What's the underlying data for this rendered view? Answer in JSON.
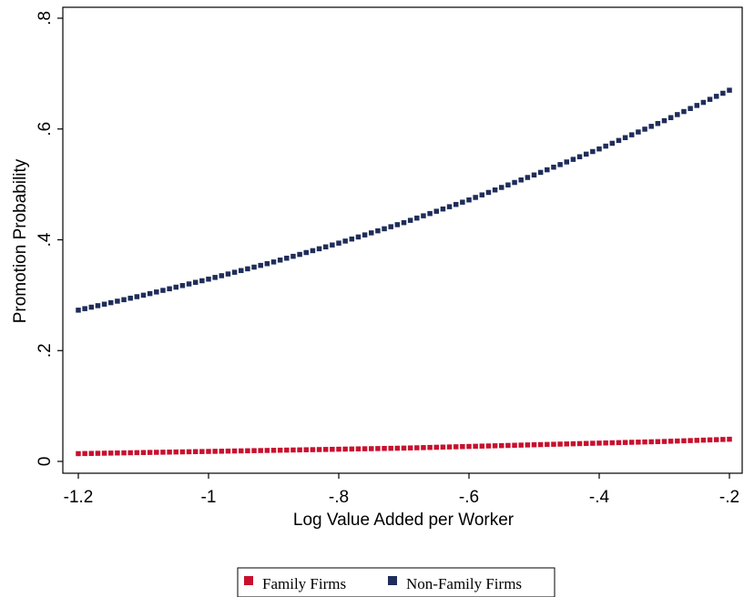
{
  "chart_data": {
    "type": "scatter",
    "title": "",
    "xlabel": "Log Value Added per Worker",
    "ylabel": "Promotion Probability",
    "xlim": [
      -1.2,
      -0.2
    ],
    "ylim": [
      0,
      0.8
    ],
    "x_ticks": [
      -1.2,
      -1.0,
      -0.8,
      -0.6,
      -0.4,
      -0.2
    ],
    "x_tick_labels": [
      "-1.2",
      "-1",
      "-.8",
      "-.6",
      "-.4",
      "-.2"
    ],
    "y_ticks": [
      0,
      0.2,
      0.4,
      0.6,
      0.8
    ],
    "y_tick_labels": [
      "0",
      ".2",
      ".4",
      ".6",
      ".8"
    ],
    "grid": false,
    "legend_position": "bottom",
    "x": [
      -1.2,
      -1.1,
      -1.0,
      -0.9,
      -0.8,
      -0.7,
      -0.6,
      -0.5,
      -0.4,
      -0.3,
      -0.2
    ],
    "series": [
      {
        "name": "Family Firms",
        "color": "#c8102e",
        "values": [
          0.014,
          0.016,
          0.018,
          0.02,
          0.022,
          0.024,
          0.027,
          0.03,
          0.033,
          0.036,
          0.04
        ]
      },
      {
        "name": "Non-Family Firms",
        "color": "#1f2d5a",
        "values": [
          0.273,
          0.3,
          0.329,
          0.36,
          0.394,
          0.431,
          0.472,
          0.517,
          0.564,
          0.615,
          0.67
        ]
      }
    ]
  }
}
